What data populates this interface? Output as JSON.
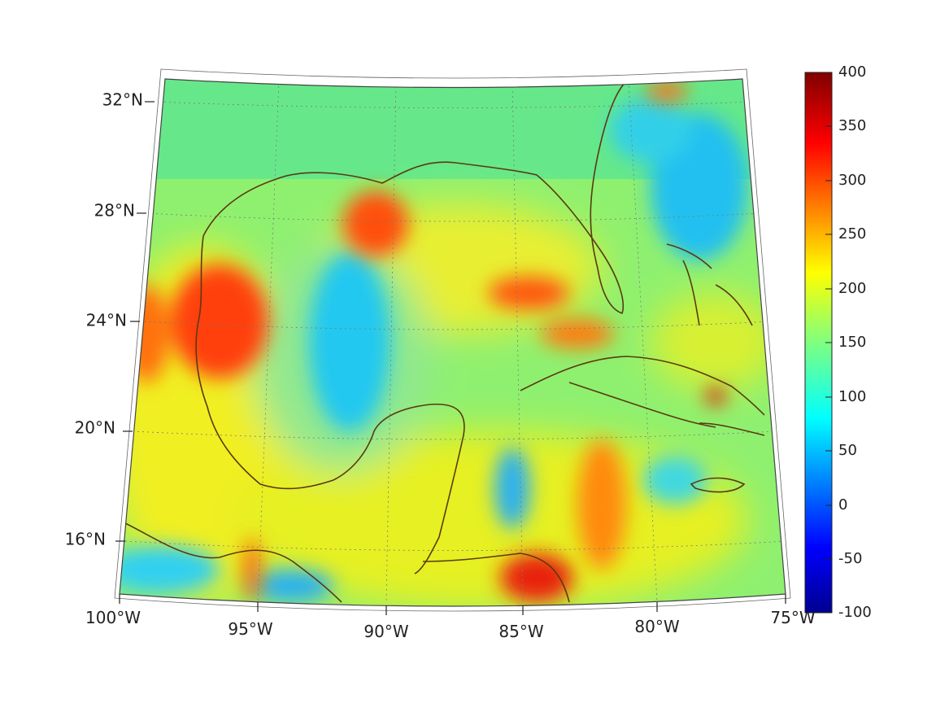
{
  "map": {
    "latitude_labels": [
      "32°N",
      "28°N",
      "24°N",
      "20°N",
      "16°N"
    ],
    "longitude_labels": [
      "100°W",
      "95°W",
      "90°W",
      "85°W",
      "80°W",
      "75°W"
    ],
    "colorbar": {
      "ticks": [
        "400",
        "350",
        "300",
        "250",
        "200",
        "150",
        "100",
        "50",
        "0",
        "-50",
        "-100"
      ],
      "min": -100,
      "max": 400,
      "colormap": "jet"
    },
    "colors": {
      "coastline": "#5a3a10",
      "grid": "#7a7a7a",
      "background_field": "#66e88a"
    }
  }
}
